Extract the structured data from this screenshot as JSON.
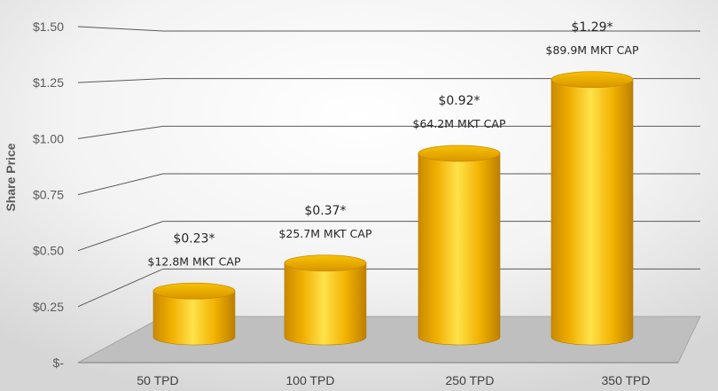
{
  "chart_data": {
    "type": "bar",
    "categories": [
      "50 TPD",
      "100 TPD",
      "250 TPD",
      "350 TPD"
    ],
    "values": [
      0.23,
      0.37,
      0.92,
      1.29
    ],
    "price_labels": [
      "$0.23*",
      "$0.37*",
      "$0.92*",
      "$1.29*"
    ],
    "mkt_cap_labels": [
      "$12.8M MKT CAP",
      "$25.7M MKT CAP",
      "$64.2M MKT CAP",
      "$89.9M MKT CAP"
    ],
    "ylabel": "Share Price",
    "yticks": [
      "$-",
      "$0.25",
      "$0.50",
      "$0.75",
      "$1.00",
      "$1.25",
      "$1.50"
    ],
    "ylim": [
      0,
      1.5
    ],
    "grid": true,
    "bar_style": "3d-cylinder",
    "colors": {
      "bar": "#f5b800",
      "bar_dark": "#c98a00",
      "bar_light": "#ffe24a",
      "floor": "#bfbfbf",
      "grid": "#595959"
    }
  }
}
